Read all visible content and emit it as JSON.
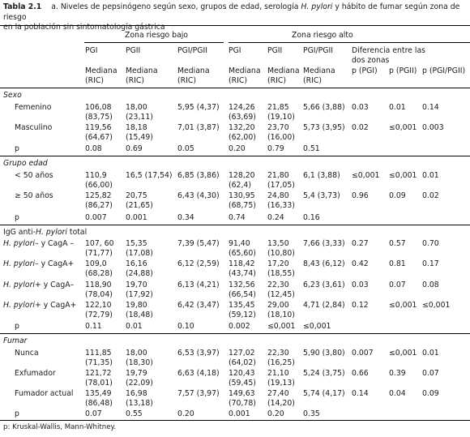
{
  "caption": {
    "label": "Tabla 2.1",
    "text_a": "a. Niveles de pepsinógeno según sexo, grupos de edad, serología ",
    "text_species": "H. pylori",
    "text_b": " y hábito de fumar según zona de riesgo",
    "text_line2": "en la población sin sintomatología gástrica"
  },
  "header": {
    "zone_low": "Zona riesgo bajo",
    "zone_high": "Zona riesgo alto",
    "cols": [
      "PGI",
      "PGII",
      "PGI/PGII",
      "PGI",
      "PGII",
      "PGI/PGII"
    ],
    "diff_label": [
      "Diferencia entre las",
      "dos zonas"
    ],
    "p_cols": [
      "p (PGI)",
      "p (PGII)",
      "p (PGI/PGII)"
    ],
    "stat": [
      "Mediana",
      "(RIC)"
    ]
  },
  "sections": {
    "sexo": "Sexo",
    "edad": "Grupo edad",
    "igg_a": "IgG anti-",
    "igg_species": "H. pylori",
    "igg_b": " total",
    "fumar": "Fumar"
  },
  "rows": {
    "femenino": {
      "label": "Femenino",
      "c": [
        [
          "106,08",
          "(83,75)"
        ],
        [
          "18,00",
          "(23,11)"
        ],
        [
          "5,95 (4,37)",
          ""
        ],
        [
          "124,26",
          "(63,69)"
        ],
        [
          "21,85",
          "(19,10)"
        ],
        [
          "5,66 (3,88)",
          ""
        ]
      ],
      "p": [
        "0.03",
        "0.01",
        "0.14"
      ]
    },
    "masculino": {
      "label": "Masculino",
      "c": [
        [
          "119,56",
          "(64,67)"
        ],
        [
          "18,18",
          "(15,49)"
        ],
        [
          "7,01 (3,87)",
          ""
        ],
        [
          "132,20",
          "(62,00)"
        ],
        [
          "23,70",
          "(16,00)"
        ],
        [
          "5,73 (3,95)",
          ""
        ]
      ],
      "p": [
        "0.02",
        "≤0,001",
        "0.003"
      ]
    },
    "p_sexo": {
      "label": "p",
      "c": [
        "0.08",
        "0.69",
        "0.05",
        "0.20",
        "0.79",
        "0.51"
      ]
    },
    "menor50": {
      "label": "< 50 años",
      "c": [
        [
          "110,9",
          "(66,00)"
        ],
        [
          "16,5 (17,54)",
          ""
        ],
        [
          "6,85 (3,86)",
          ""
        ],
        [
          "128,20",
          "(62,4)"
        ],
        [
          "21,80",
          "(17,05)"
        ],
        [
          "6,1 (3,88)",
          ""
        ]
      ],
      "p": [
        "≤0,001",
        "≤0,001",
        "0.01"
      ]
    },
    "mayor50": {
      "label": "≥ 50 años",
      "c": [
        [
          "125,82",
          "(86,27)"
        ],
        [
          "20,75",
          "(21,65)"
        ],
        [
          "6,43 (4,30)",
          ""
        ],
        [
          "130,95",
          "(68,75)"
        ],
        [
          "24,80",
          "(16,33)"
        ],
        [
          "5,4 (3,73)",
          ""
        ]
      ],
      "p": [
        "0.96",
        "0.09",
        "0.02"
      ]
    },
    "p_edad": {
      "label": "p",
      "c": [
        "0.007",
        "0.001",
        "0.34",
        "0.74",
        "0.24",
        "0.16"
      ]
    },
    "hp_neg_neg": {
      "a": "H. pylori",
      "b": "– y CagA –",
      "c": [
        [
          "107, 60",
          "(71,77)"
        ],
        [
          "15,35",
          "(17,08)"
        ],
        [
          "7,39 (5,47)",
          ""
        ],
        [
          "91,40",
          "(65,60)"
        ],
        [
          "13,50",
          "(10,80)"
        ],
        [
          "7,66 (3,33)",
          ""
        ]
      ],
      "p": [
        "0.27",
        "0.57",
        "0.70"
      ]
    },
    "hp_neg_pos": {
      "a": "H. pylori",
      "b": "– y CagA+",
      "c": [
        [
          "109,0",
          "(68,28)"
        ],
        [
          "16,16",
          "(24,88)"
        ],
        [
          "6,12 (2,59)",
          ""
        ],
        [
          "118,42",
          "(43,74)"
        ],
        [
          "17,20",
          "(18,55)"
        ],
        [
          "8,43 (6,12)",
          ""
        ]
      ],
      "p": [
        "0.42",
        "0.81",
        "0.17"
      ]
    },
    "hp_pos_neg": {
      "a": "H. pylori",
      "b": "+ y CagA–",
      "c": [
        [
          "118,90",
          "(78,04)"
        ],
        [
          "19,70",
          "(17,92)"
        ],
        [
          "6,13 (4,21)",
          ""
        ],
        [
          "132,56",
          "(66,54)"
        ],
        [
          "22,30",
          "(12,45)"
        ],
        [
          "6,23 (3,61)",
          ""
        ]
      ],
      "p": [
        "0.03",
        "0.07",
        "0.08"
      ]
    },
    "hp_pos_pos": {
      "a": "H. pylori",
      "b": "+ y CagA+",
      "c": [
        [
          "122,10",
          "(72,79)"
        ],
        [
          "19,80",
          "(18,48)"
        ],
        [
          "6,42 (3,47)",
          ""
        ],
        [
          "135,45",
          "(59,12)"
        ],
        [
          "29,00",
          "(18,10)"
        ],
        [
          "4,71 (2,84)",
          ""
        ]
      ],
      "p": [
        "0.12",
        "≤0,001",
        "≤0,001"
      ]
    },
    "p_igg": {
      "label": "p",
      "c": [
        "0.11",
        "0.01",
        "0.10",
        "0.002",
        "≤0,001",
        "≤0,001"
      ]
    },
    "nunca": {
      "label": "Nunca",
      "c": [
        [
          "111,85",
          "(71,35)"
        ],
        [
          "18,00",
          "(18,30)"
        ],
        [
          "6,53 (3,97)",
          ""
        ],
        [
          "127,02",
          "(64,02)"
        ],
        [
          "22,30",
          "(16,25)"
        ],
        [
          "5,90 (3,80)",
          ""
        ]
      ],
      "p": [
        "0.007",
        "≤0,001",
        "0.01"
      ]
    },
    "exfumador": {
      "label": "Exfumador",
      "c": [
        [
          "121,72",
          "(78,01)"
        ],
        [
          "19,79",
          "(22,09)"
        ],
        [
          "6,63 (4,18)",
          ""
        ],
        [
          "120,43",
          "(59,45)"
        ],
        [
          "21,10",
          "(19,13)"
        ],
        [
          "5,24 (3,75)",
          ""
        ]
      ],
      "p": [
        "0.66",
        "0.39",
        "0.07"
      ]
    },
    "actual": {
      "label": "Fumador actual",
      "c": [
        [
          "135,49",
          "(86,48)"
        ],
        [
          "16,98",
          "(13,18)"
        ],
        [
          "7,57 (3,97)",
          ""
        ],
        [
          "149,63",
          "(70,78)"
        ],
        [
          "27,40",
          "(14,20)"
        ],
        [
          "5,74 (4,17)",
          ""
        ]
      ],
      "p": [
        "0.14",
        "0.04",
        "0.09"
      ]
    },
    "p_fumar": {
      "label": "p",
      "c": [
        "0.07",
        "0.55",
        "0.20",
        "0.001",
        "0.20",
        "0.35"
      ]
    }
  },
  "footnote": "p: Kruskal-Wallis, Mann-Whitney."
}
